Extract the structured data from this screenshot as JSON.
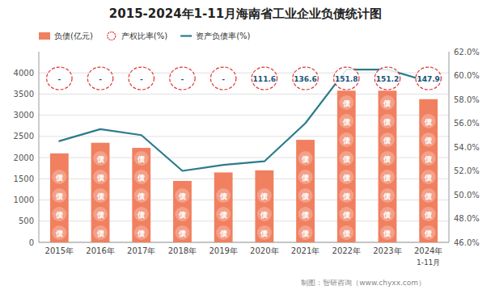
{
  "chart_data": {
    "type": "bar",
    "title": "2015-2024年1-11月海南省工业企业负债统计图",
    "categories": [
      "2015年",
      "2016年",
      "2017年",
      "2018年",
      "2019年",
      "2020年",
      "2021年",
      "2022年",
      "2023年",
      "2024年"
    ],
    "series": [
      {
        "name": "负债(亿元)",
        "type": "bar",
        "color": "#F08060",
        "values": [
          2100,
          2350,
          2230,
          1450,
          1650,
          1700,
          2420,
          3580,
          3580,
          3380
        ]
      },
      {
        "name": "产权比率(%)",
        "type": "label",
        "color": "#E03030",
        "values": [
          null,
          null,
          null,
          null,
          null,
          111.6,
          136.6,
          151.8,
          151.2,
          147.9
        ],
        "value_labels": [
          "-",
          "-",
          "-",
          "-",
          "-",
          "111.6",
          "136.6",
          "151.8",
          "151.2",
          "147.9"
        ]
      },
      {
        "name": "资产负债率(%)",
        "type": "line",
        "axis": "y2",
        "color": "#2B7B8C",
        "values": [
          54.5,
          55.5,
          55.0,
          52.0,
          52.5,
          52.8,
          56.0,
          60.5,
          60.5,
          59.5
        ]
      }
    ],
    "bar_text": "债",
    "annotations": [
      "1-11月",
      "制图：智研咨询（www.chyxx.com）"
    ],
    "ylim": [
      0,
      4500
    ],
    "yticks": [
      0,
      500,
      1000,
      1500,
      2000,
      2500,
      3000,
      3500,
      4000
    ],
    "y2lim": [
      46.0,
      62.0
    ],
    "y2ticks": [
      {
        "value": 46.0,
        "label": "46.0%"
      },
      {
        "value": 48.0,
        "label": "48.0%"
      },
      {
        "value": 50.0,
        "label": "50.0%"
      },
      {
        "value": 52.0,
        "label": "52.0%"
      },
      {
        "value": 54.0,
        "label": "54.0%"
      },
      {
        "value": 56.0,
        "label": "56.0%"
      },
      {
        "value": 58.0,
        "label": "58.0%"
      },
      {
        "value": 60.0,
        "label": "60.0%"
      },
      {
        "value": 62.0,
        "label": "62.0%"
      }
    ],
    "grid": true,
    "legend": "top"
  }
}
